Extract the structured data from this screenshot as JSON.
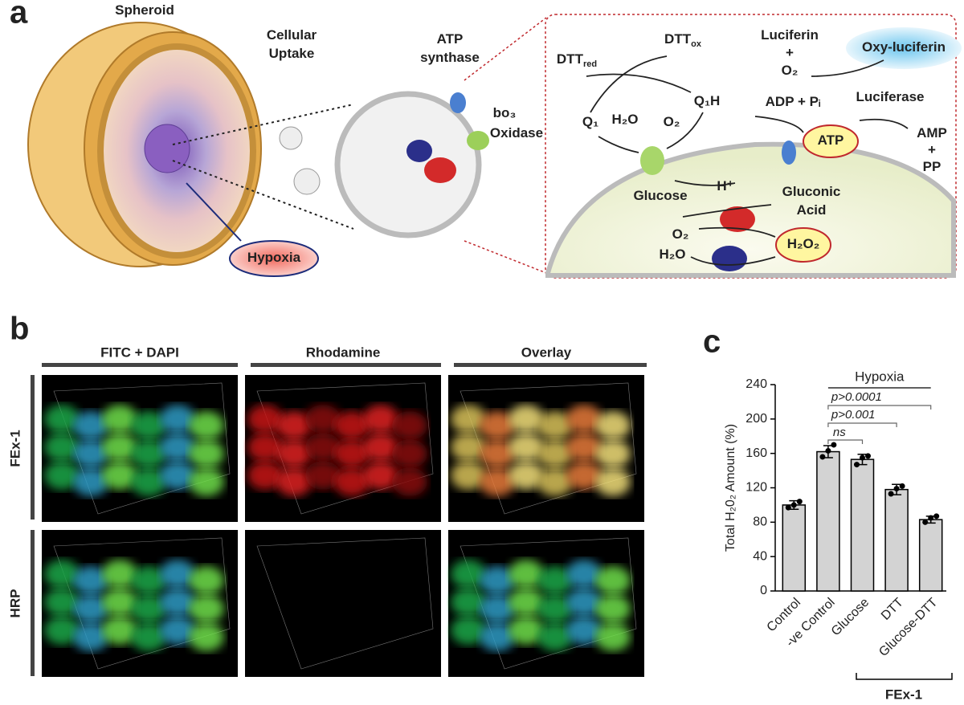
{
  "panel_letters": [
    "a",
    "b",
    "c"
  ],
  "diagram": {
    "labels": [
      {
        "text": "Spheroid"
      },
      {
        "text": "Cellular"
      },
      {
        "text": "Uptake"
      },
      {
        "text": "ATP"
      },
      {
        "text": "synthase"
      },
      {
        "text": "bo₃"
      },
      {
        "text": "Oxidase"
      },
      {
        "text": "Hypoxia"
      },
      {
        "text": "DTT",
        "sub": "red"
      },
      {
        "text": "DTT",
        "sub": "ox"
      },
      {
        "text": "Q₁"
      },
      {
        "text": "H₂O"
      },
      {
        "text": "O₂"
      },
      {
        "text": "Q₁H"
      },
      {
        "text": "Luciferin"
      },
      {
        "text": "+"
      },
      {
        "text": "O₂"
      },
      {
        "text": "Oxy-luciferin"
      },
      {
        "text": "ADP + Pᵢ"
      },
      {
        "text": "Luciferase"
      },
      {
        "text": "ATP"
      },
      {
        "text": "AMP"
      },
      {
        "text": "+"
      },
      {
        "text": "PP"
      },
      {
        "text": "H⁺"
      },
      {
        "text": "Glucose"
      },
      {
        "text": "Gluconic"
      },
      {
        "text": "Acid"
      },
      {
        "text": "O₂"
      },
      {
        "text": "H₂O"
      },
      {
        "text": "H₂O₂"
      }
    ]
  },
  "microscopy": {
    "columns": [
      "FITC + DAPI",
      "Rhodamine",
      "Overlay"
    ],
    "rows": [
      "FEx-1",
      "HRP"
    ]
  },
  "chart_data": {
    "type": "bar",
    "ylabel": "Total H₂0₂ Amount (%)",
    "categories": [
      "Control",
      "-ve Control",
      "Glucose",
      "DTT",
      "Glucose-DTT"
    ],
    "values": [
      100,
      162,
      153,
      118,
      83
    ],
    "errors": [
      5,
      7,
      6,
      6,
      4
    ],
    "points": [
      [
        97,
        100,
        104
      ],
      [
        156,
        163,
        170
      ],
      [
        147,
        155,
        157
      ],
      [
        113,
        119,
        122
      ],
      [
        80,
        85,
        87
      ]
    ],
    "color": "#d3d3d3",
    "ylim": [
      0,
      240
    ],
    "yticks": [
      0,
      40,
      80,
      120,
      160,
      200,
      240
    ],
    "annotations": [
      "Hypoxia",
      "p>0.0001",
      "p>0.001",
      "ns"
    ],
    "group_label": "FEx-1"
  }
}
